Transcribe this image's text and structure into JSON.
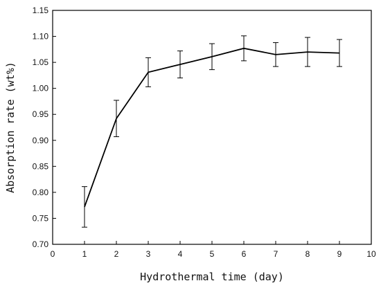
{
  "chart_data": {
    "type": "line",
    "title": "",
    "xlabel": "Hydrothermal time (day)",
    "ylabel": "Absorption rate (wt%)",
    "xlim": [
      0,
      10
    ],
    "ylim": [
      0.7,
      1.15
    ],
    "x_ticks": [
      "0",
      "1",
      "2",
      "3",
      "4",
      "5",
      "6",
      "7",
      "8",
      "9",
      "10"
    ],
    "y_ticks": [
      "0.70",
      "0.75",
      "0.80",
      "0.85",
      "0.90",
      "0.95",
      "1.00",
      "1.05",
      "1.10",
      "1.15"
    ],
    "grid": false,
    "legend": "none",
    "series": [
      {
        "x": [
          1,
          2,
          3,
          4,
          5,
          6,
          7,
          8,
          9
        ],
        "y": [
          0.772,
          0.942,
          1.031,
          1.046,
          1.061,
          1.077,
          1.065,
          1.07,
          1.068
        ],
        "error": [
          0.039,
          0.035,
          0.028,
          0.026,
          0.025,
          0.024,
          0.023,
          0.028,
          0.026
        ],
        "color": "#000000"
      }
    ]
  }
}
